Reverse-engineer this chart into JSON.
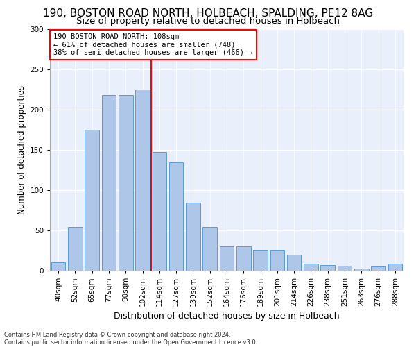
{
  "title1": "190, BOSTON ROAD NORTH, HOLBEACH, SPALDING, PE12 8AG",
  "title2": "Size of property relative to detached houses in Holbeach",
  "xlabel": "Distribution of detached houses by size in Holbeach",
  "ylabel": "Number of detached properties",
  "categories": [
    "40sqm",
    "52sqm",
    "65sqm",
    "77sqm",
    "90sqm",
    "102sqm",
    "114sqm",
    "127sqm",
    "139sqm",
    "152sqm",
    "164sqm",
    "176sqm",
    "189sqm",
    "201sqm",
    "214sqm",
    "226sqm",
    "238sqm",
    "251sqm",
    "263sqm",
    "276sqm",
    "288sqm"
  ],
  "values": [
    10,
    54,
    175,
    218,
    218,
    225,
    148,
    135,
    85,
    54,
    30,
    30,
    26,
    26,
    20,
    9,
    7,
    6,
    3,
    5,
    9
  ],
  "bar_color": "#aec6e8",
  "bar_edge_color": "#5b9bd5",
  "annotation_text_line1": "190 BOSTON ROAD NORTH: 108sqm",
  "annotation_text_line2": "← 61% of detached houses are smaller (748)",
  "annotation_text_line3": "38% of semi-detached houses are larger (466) →",
  "vline_color": "red",
  "bg_color": "#eaf0fb",
  "footer1": "Contains HM Land Registry data © Crown copyright and database right 2024.",
  "footer2": "Contains public sector information licensed under the Open Government Licence v3.0.",
  "ylim": [
    0,
    300
  ],
  "title1_fontsize": 11,
  "title2_fontsize": 9.5,
  "xlabel_fontsize": 9,
  "ylabel_fontsize": 8.5,
  "ann_fontsize": 7.5,
  "footer_fontsize": 6.0,
  "tick_fontsize": 7.5
}
